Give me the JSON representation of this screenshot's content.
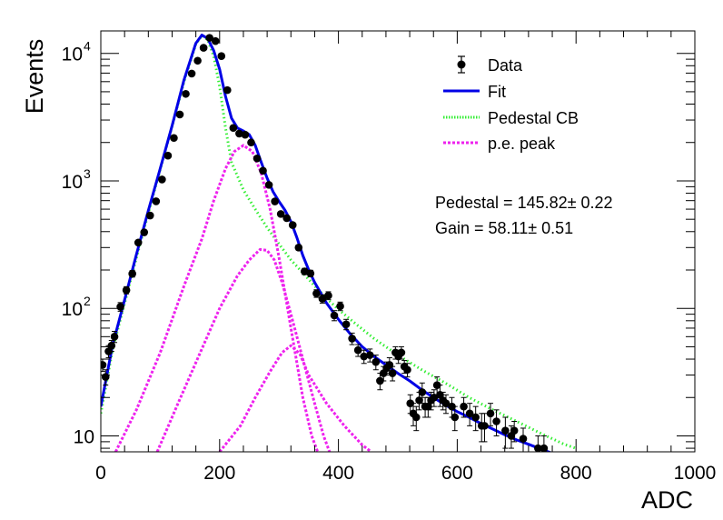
{
  "colors": {
    "data": "#000000",
    "fit": "#0000e6",
    "pedestal": "#33ee33",
    "pe_peak": "#ee22ee"
  },
  "chart_data": {
    "type": "scatter",
    "xlabel": "ADC",
    "ylabel": "Events",
    "xlim": [
      0,
      1000
    ],
    "ylim": [
      7.5,
      15000
    ],
    "yscale": "log",
    "grid": false,
    "legend_position": "top-right",
    "x_ticks": [
      0,
      200,
      400,
      600,
      800,
      1000
    ],
    "x_tick_labels": [
      "0",
      "200",
      "400",
      "600",
      "800",
      "1000"
    ],
    "y_ticks": [
      10,
      100,
      1000,
      10000
    ],
    "y_tick_labels": [
      {
        "base": "10",
        "exp": ""
      },
      {
        "base": "10",
        "exp": "2"
      },
      {
        "base": "10",
        "exp": "3"
      },
      {
        "base": "10",
        "exp": "4"
      }
    ],
    "legend": [
      {
        "label": "Data",
        "style": "marker"
      },
      {
        "label": "Fit",
        "style": "solid"
      },
      {
        "label": "Pedestal CB",
        "style": "dotted"
      },
      {
        "label": "p.e. peak",
        "style": "dashed"
      }
    ],
    "annotations": [
      "Pedestal = 145.82± 0.22",
      "Gain = 58.11± 0.51"
    ],
    "data_points": [
      [
        3,
        36,
        4
      ],
      [
        8,
        29,
        4
      ],
      [
        13,
        46,
        5
      ],
      [
        18,
        51,
        5
      ],
      [
        23,
        60,
        6
      ],
      [
        33,
        103,
        8
      ],
      [
        43,
        139,
        9
      ],
      [
        53,
        187,
        11
      ],
      [
        63,
        328,
        14
      ],
      [
        73,
        395,
        16
      ],
      [
        83,
        535,
        18
      ],
      [
        93,
        691,
        21
      ],
      [
        103,
        1025,
        25
      ],
      [
        113,
        1577,
        32
      ],
      [
        123,
        2171,
        37
      ],
      [
        133,
        3318,
        46
      ],
      [
        143,
        4811,
        55
      ],
      [
        153,
        6945,
        67
      ],
      [
        163,
        8760,
        75
      ],
      [
        173,
        11055,
        84
      ],
      [
        183,
        13235,
        92
      ],
      [
        193,
        12475,
        89
      ],
      [
        203,
        9515,
        78
      ],
      [
        213,
        5150,
        57
      ],
      [
        223,
        2600,
        40
      ],
      [
        233,
        2350,
        38
      ],
      [
        243,
        2300,
        38
      ],
      [
        253,
        2000,
        35
      ],
      [
        263,
        1500,
        30
      ],
      [
        273,
        1200,
        27
      ],
      [
        283,
        930,
        24
      ],
      [
        293,
        690,
        21
      ],
      [
        303,
        550,
        18
      ],
      [
        313,
        510,
        18
      ],
      [
        323,
        450,
        17
      ],
      [
        333,
        300,
        14
      ],
      [
        343,
        195,
        11
      ],
      [
        353,
        188,
        11
      ],
      [
        363,
        131,
        9
      ],
      [
        373,
        119,
        9
      ],
      [
        383,
        126,
        9
      ],
      [
        393,
        88,
        8
      ],
      [
        403,
        104,
        8
      ],
      [
        413,
        75,
        7
      ],
      [
        423,
        58,
        6
      ],
      [
        433,
        47,
        5
      ],
      [
        443,
        42,
        5
      ],
      [
        453,
        43,
        5
      ],
      [
        463,
        38,
        5
      ],
      [
        470,
        27,
        4
      ],
      [
        476,
        31,
        4
      ],
      [
        481,
        34,
        4
      ],
      [
        486,
        36,
        5
      ],
      [
        491,
        31,
        4
      ],
      [
        496,
        45,
        5
      ],
      [
        501,
        42,
        5
      ],
      [
        506,
        45,
        5
      ],
      [
        511,
        35,
        4
      ],
      [
        516,
        33,
        4
      ],
      [
        521,
        18,
        3
      ],
      [
        526,
        15,
        3
      ],
      [
        531,
        14,
        3
      ],
      [
        536,
        19,
        3
      ],
      [
        541,
        22,
        4
      ],
      [
        546,
        17,
        3
      ],
      [
        551,
        17,
        3
      ],
      [
        556,
        19,
        3
      ],
      [
        561,
        20,
        3
      ],
      [
        566,
        25,
        4
      ],
      [
        571,
        21,
        4
      ],
      [
        576,
        19,
        3
      ],
      [
        581,
        18,
        3
      ],
      [
        591,
        17,
        3
      ],
      [
        596,
        14,
        3
      ],
      [
        611,
        17,
        3
      ],
      [
        621,
        15,
        3
      ],
      [
        631,
        14,
        3
      ],
      [
        641,
        12,
        3
      ],
      [
        646,
        12,
        3
      ],
      [
        656,
        15,
        3
      ],
      [
        666,
        13,
        3
      ],
      [
        681,
        11,
        3
      ],
      [
        691,
        10,
        2
      ],
      [
        696,
        11,
        2
      ],
      [
        711,
        9.5,
        2
      ],
      [
        736,
        8,
        2
      ],
      [
        746,
        8,
        2
      ]
    ],
    "series": [
      {
        "name": "Fit",
        "style": "solid",
        "color": "#0000e6",
        "points": [
          [
            0,
            17
          ],
          [
            20,
            52
          ],
          [
            40,
            117
          ],
          [
            60,
            265
          ],
          [
            80,
            585
          ],
          [
            100,
            1250
          ],
          [
            120,
            2710
          ],
          [
            140,
            6200
          ],
          [
            160,
            12000
          ],
          [
            170,
            13900
          ],
          [
            180,
            13100
          ],
          [
            190,
            10500
          ],
          [
            200,
            7500
          ],
          [
            210,
            4600
          ],
          [
            220,
            3100
          ],
          [
            230,
            2600
          ],
          [
            240,
            2460
          ],
          [
            250,
            2300
          ],
          [
            260,
            1900
          ],
          [
            270,
            1400
          ],
          [
            280,
            1050
          ],
          [
            290,
            820
          ],
          [
            300,
            690
          ],
          [
            310,
            590
          ],
          [
            320,
            480
          ],
          [
            330,
            360
          ],
          [
            340,
            260
          ],
          [
            350,
            200
          ],
          [
            360,
            160
          ],
          [
            380,
            110
          ],
          [
            400,
            82
          ],
          [
            420,
            63
          ],
          [
            440,
            50
          ],
          [
            460,
            42
          ],
          [
            480,
            36
          ],
          [
            500,
            31
          ],
          [
            520,
            27
          ],
          [
            540,
            23
          ],
          [
            560,
            20
          ],
          [
            580,
            17.5
          ],
          [
            600,
            15.5
          ],
          [
            620,
            14
          ],
          [
            640,
            12.5
          ],
          [
            660,
            11.3
          ],
          [
            680,
            10.2
          ],
          [
            700,
            9.3
          ],
          [
            720,
            8.6
          ],
          [
            740,
            7.9
          ],
          [
            760,
            7.3
          ]
        ]
      },
      {
        "name": "Pedestal CB",
        "style": "dotted",
        "color": "#33ee33",
        "points": [
          [
            0,
            15
          ],
          [
            20,
            48
          ],
          [
            40,
            110
          ],
          [
            60,
            250
          ],
          [
            80,
            560
          ],
          [
            100,
            1230
          ],
          [
            120,
            2700
          ],
          [
            140,
            6000
          ],
          [
            160,
            11800
          ],
          [
            170,
            13800
          ],
          [
            180,
            12800
          ],
          [
            190,
            9500
          ],
          [
            200,
            5500
          ],
          [
            210,
            2600
          ],
          [
            220,
            1400
          ],
          [
            240,
            850
          ],
          [
            260,
            600
          ],
          [
            280,
            430
          ],
          [
            300,
            320
          ],
          [
            320,
            240
          ],
          [
            340,
            190
          ],
          [
            360,
            150
          ],
          [
            380,
            120
          ],
          [
            400,
            98
          ],
          [
            430,
            75
          ],
          [
            460,
            58
          ],
          [
            500,
            43
          ],
          [
            540,
            33
          ],
          [
            580,
            26
          ],
          [
            620,
            20
          ],
          [
            660,
            16
          ],
          [
            700,
            13
          ],
          [
            740,
            10.5
          ],
          [
            780,
            8.6
          ],
          [
            800,
            8
          ]
        ]
      },
      {
        "name": "p.e. peak 1",
        "style": "dashed",
        "color": "#ee22ee",
        "points": [
          [
            25,
            7.5
          ],
          [
            60,
            16
          ],
          [
            100,
            45
          ],
          [
            140,
            150
          ],
          [
            170,
            350
          ],
          [
            190,
            700
          ],
          [
            210,
            1250
          ],
          [
            225,
            1700
          ],
          [
            240,
            1900
          ],
          [
            255,
            1700
          ],
          [
            270,
            1150
          ],
          [
            285,
            600
          ],
          [
            300,
            250
          ],
          [
            320,
            70
          ],
          [
            340,
            20
          ],
          [
            355,
            10
          ],
          [
            365,
            7.5
          ]
        ]
      },
      {
        "name": "p.e. peak 2",
        "style": "dashed",
        "color": "#ee22ee",
        "points": [
          [
            95,
            7.5
          ],
          [
            130,
            18
          ],
          [
            170,
            48
          ],
          [
            200,
            100
          ],
          [
            230,
            180
          ],
          [
            250,
            240
          ],
          [
            268,
            290
          ],
          [
            280,
            285
          ],
          [
            292,
            240
          ],
          [
            305,
            160
          ],
          [
            320,
            90
          ],
          [
            340,
            40
          ],
          [
            360,
            18
          ],
          [
            375,
            10
          ],
          [
            385,
            7.5
          ]
        ]
      },
      {
        "name": "p.e. peak 3",
        "style": "dashed",
        "color": "#ee22ee",
        "points": [
          [
            200,
            7.5
          ],
          [
            235,
            12
          ],
          [
            260,
            20
          ],
          [
            285,
            32
          ],
          [
            305,
            45
          ],
          [
            320,
            51
          ],
          [
            335,
            44
          ],
          [
            350,
            30
          ],
          [
            380,
            18
          ],
          [
            410,
            12
          ],
          [
            440,
            8.5
          ],
          [
            455,
            7.5
          ]
        ]
      }
    ]
  }
}
